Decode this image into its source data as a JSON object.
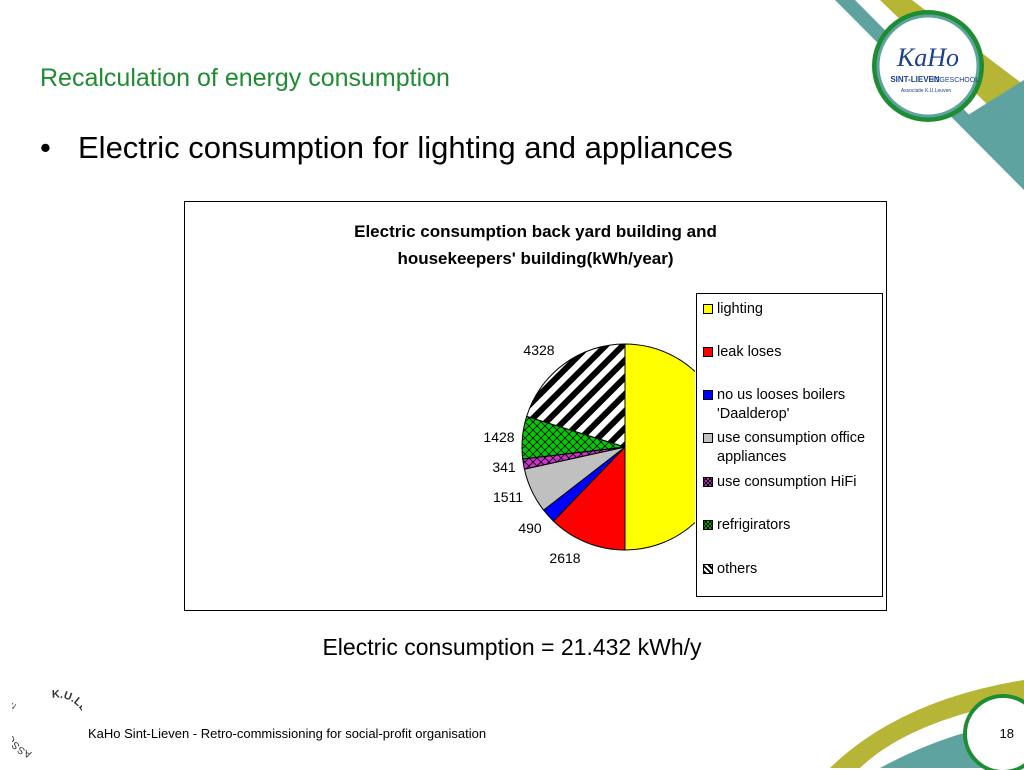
{
  "slide": {
    "title": "Recalculation of energy consumption",
    "bullet_marker": "•",
    "bullet": "Electric consumption for lighting and appliances",
    "total": "Electric consumption = 21.432 kWh/y",
    "footer": "KaHo Sint-Lieven - Retro-commissioning for social-profit organisation",
    "page_number": "18"
  },
  "logos": {
    "kaho": [
      "KaHo",
      "SINT-LIEVEN",
      "HOGESCHOOL",
      "Associatie K.U.Leuven"
    ],
    "kuleuven": [
      "ASSOCIATIE",
      "K.U.LEUVEN"
    ]
  },
  "colors": {
    "title_green": "#1e8c32",
    "teal": "#5fa3a1",
    "olive": "#b7b535"
  },
  "chart_data": {
    "type": "pie",
    "title_lines": [
      "Electric consumption back yard building and",
      "housekeepers' building(kWh/year)"
    ],
    "start_angle": "12 o'clock, clockwise",
    "slices": [
      {
        "label": "lighting",
        "legend": [
          "lighting"
        ],
        "value": 10716,
        "color": "#ffff00",
        "pattern": "solid"
      },
      {
        "label": "leak loses",
        "legend": [
          "leak loses"
        ],
        "value": 2618,
        "color": "#ff0000",
        "pattern": "solid"
      },
      {
        "label": "no us looses boilers 'Daalderop'",
        "legend": [
          "no us looses boilers",
          "'Daalderop'"
        ],
        "value": 490,
        "color": "#0000ff",
        "pattern": "solid"
      },
      {
        "label": "use consumption office appliances",
        "legend": [
          "use consumption office",
          "appliances"
        ],
        "value": 1511,
        "color": "#c0c0c0",
        "pattern": "solid"
      },
      {
        "label": "use consumption HiFi",
        "legend": [
          "use consumption HiFi"
        ],
        "value": 341,
        "color": "#cc33cc",
        "pattern": "crosshatch"
      },
      {
        "label": "refrigirators",
        "legend": [
          "refrigirators"
        ],
        "value": 1428,
        "color": "#00cc00",
        "pattern": "crosshatch"
      },
      {
        "label": "others",
        "legend": [
          "others"
        ],
        "value": 4328,
        "color": "#000000",
        "pattern": "diagonal-stripes"
      }
    ]
  }
}
